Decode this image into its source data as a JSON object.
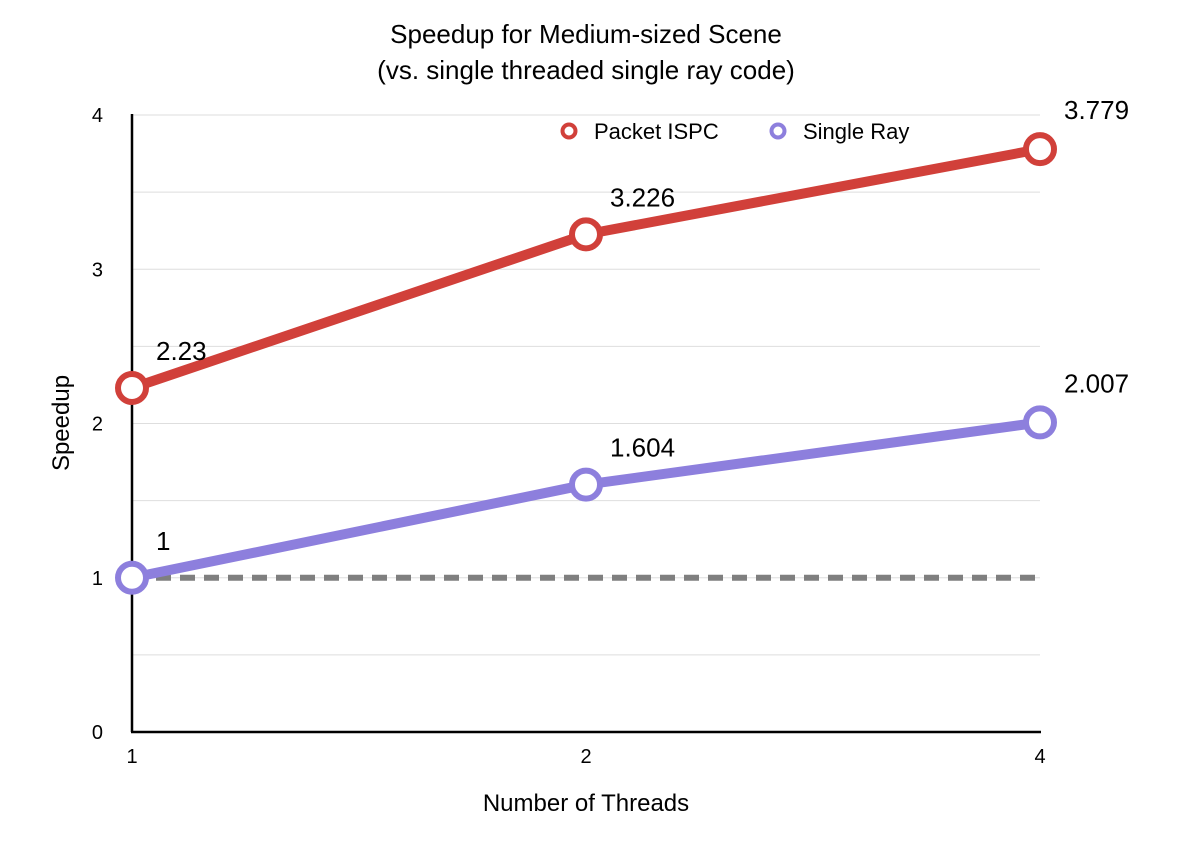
{
  "chart_data": {
    "type": "line",
    "title": "Speedup for Medium-sized Scene",
    "subtitle": "(vs. single threaded single ray code)",
    "xlabel": "Number of Threads",
    "ylabel": "Speedup",
    "categories": [
      "1",
      "2",
      "4"
    ],
    "ylim": [
      0,
      4
    ],
    "yticks": [
      "0",
      "1",
      "2",
      "3",
      "4"
    ],
    "grid": true,
    "legend_position": "top-center",
    "baseline": {
      "value": 1,
      "style": "dashed",
      "color": "#7f7f7f"
    },
    "series": [
      {
        "name": "Packet ISPC",
        "color": "#d1403a",
        "values": [
          2.23,
          3.226,
          3.779
        ],
        "labels": [
          "2.23",
          "3.226",
          "3.779"
        ]
      },
      {
        "name": "Single Ray",
        "color": "#8d7fdd",
        "values": [
          1,
          1.604,
          2.007
        ],
        "labels": [
          "1",
          "1.604",
          "2.007"
        ]
      }
    ]
  }
}
